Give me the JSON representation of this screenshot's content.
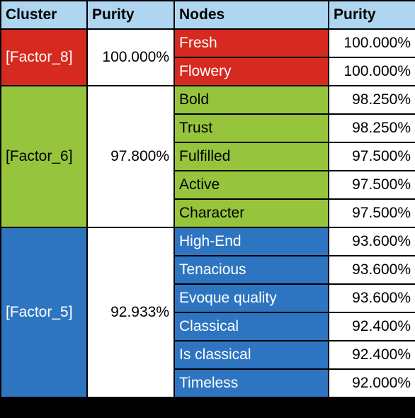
{
  "header": {
    "cluster": "Cluster",
    "cluster_purity": "Purity",
    "nodes": "Nodes",
    "node_purity": "Purity"
  },
  "clusters": [
    {
      "name": "[Factor_8]",
      "purity": "100.000%",
      "color": "#d6291f",
      "nodes": [
        {
          "label": "Fresh",
          "purity": "100.000%"
        },
        {
          "label": "Flowery",
          "purity": "100.000%"
        }
      ]
    },
    {
      "name": "[Factor_6]",
      "purity": "97.800%",
      "color": "#96c53d",
      "nodes": [
        {
          "label": "Bold",
          "purity": "98.250%"
        },
        {
          "label": "Trust",
          "purity": "98.250%"
        },
        {
          "label": "Fulfilled",
          "purity": "97.500%"
        },
        {
          "label": "Active",
          "purity": "97.500%"
        },
        {
          "label": "Character",
          "purity": "97.500%"
        }
      ]
    },
    {
      "name": "[Factor_5]",
      "purity": "92.933%",
      "color": "#2e75c1",
      "nodes": [
        {
          "label": "High-End",
          "purity": "93.600%"
        },
        {
          "label": "Tenacious",
          "purity": "93.600%"
        },
        {
          "label": "Evoque quality",
          "purity": "93.600%"
        },
        {
          "label": "Classical",
          "purity": "92.400%"
        },
        {
          "label": "Is classical",
          "purity": "92.400%"
        },
        {
          "label": "Timeless",
          "purity": "92.000%"
        }
      ]
    }
  ]
}
